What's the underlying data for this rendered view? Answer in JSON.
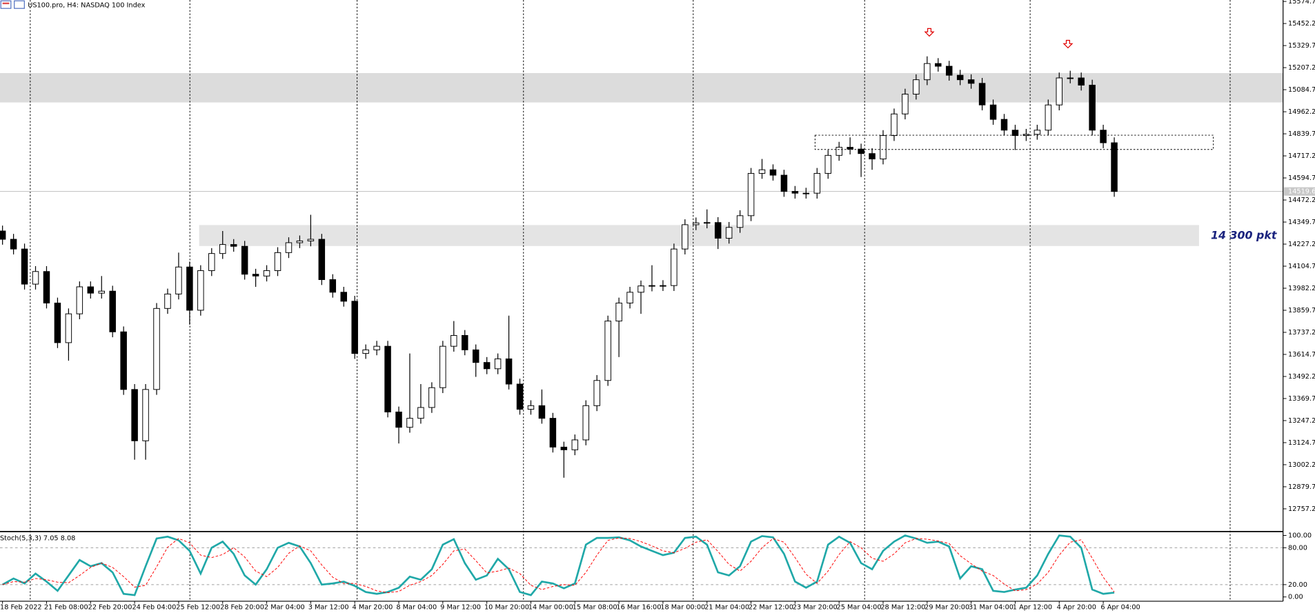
{
  "chart_data": [
    {
      "type": "candlestick",
      "title": "US100.pro, H4:  NASDAQ 100 Index",
      "annotation": "14 300 pkt",
      "categories": [
        "18 Feb 2022",
        null,
        null,
        null,
        "21 Feb 08:00",
        null,
        null,
        null,
        "22 Feb 20:00",
        null,
        null,
        null,
        "24 Feb 04:00",
        null,
        null,
        null,
        "25 Feb 12:00",
        null,
        null,
        null,
        "28 Feb 20:00",
        null,
        null,
        null,
        "2 Mar 04:00",
        null,
        null,
        null,
        "3 Mar 12:00",
        null,
        null,
        null,
        "4 Mar 20:00",
        null,
        null,
        null,
        "8 Mar 04:00",
        null,
        null,
        null,
        "9 Mar 12:00",
        null,
        null,
        null,
        "10 Mar 20:00",
        null,
        null,
        null,
        "14 Mar 00:00",
        null,
        null,
        null,
        "15 Mar 08:00",
        null,
        null,
        null,
        "16 Mar 16:00",
        null,
        null,
        null,
        "18 Mar 00:00",
        null,
        null,
        null,
        "21 Mar 04:00",
        null,
        null,
        null,
        "22 Mar 12:00",
        null,
        null,
        null,
        "23 Mar 20:00",
        null,
        null,
        null,
        "25 Mar 04:00",
        null,
        null,
        null,
        "28 Mar 12:00",
        null,
        null,
        null,
        "29 Mar 20:00",
        null,
        null,
        null,
        "31 Mar 04:00",
        null,
        null,
        null,
        "1 Apr 12:00",
        null,
        null,
        null,
        "4 Apr 20:00",
        null,
        null,
        null,
        "6 Apr 04:00",
        null
      ],
      "open": [
        14300,
        14254,
        14200,
        14005,
        14075,
        13900,
        13680,
        13840,
        13990,
        13955,
        13966,
        13740,
        13420,
        13135,
        13420,
        13870,
        13950,
        14100,
        13860,
        14080,
        14175,
        14225,
        14215,
        14060,
        14050,
        14080,
        14180,
        14235,
        14245,
        14254,
        14030,
        13960,
        13910,
        13620,
        13640,
        13660,
        13295,
        13210,
        13260,
        13320,
        13430,
        13660,
        13720,
        13640,
        13570,
        13535,
        13590,
        13450,
        13310,
        13330,
        13260,
        13100,
        13085,
        13140,
        13330,
        13470,
        13800,
        13900,
        13960,
        13995,
        13997,
        13997,
        14200,
        14335,
        14345,
        14347,
        14260,
        14320,
        14385,
        14620,
        14640,
        14610,
        14520,
        14510,
        14510,
        14620,
        14720,
        14765,
        14755,
        14730,
        14700,
        14830,
        14950,
        15060,
        15140,
        15230,
        15215,
        15165,
        15140,
        15120,
        15000,
        14920,
        14860,
        14830,
        14837,
        14860,
        15000,
        15150,
        15150,
        15110,
        14860,
        14790
      ],
      "high": [
        14330,
        14284,
        14230,
        14105,
        14105,
        13930,
        13870,
        14020,
        14020,
        14050,
        13996,
        13770,
        13450,
        13450,
        13900,
        13980,
        14180,
        14130,
        14110,
        14205,
        14300,
        14255,
        14245,
        14090,
        14110,
        14210,
        14265,
        14275,
        14390,
        14284,
        14060,
        13990,
        13940,
        13670,
        13690,
        13690,
        13325,
        13620,
        13450,
        13460,
        13690,
        13800,
        13750,
        13670,
        13600,
        13620,
        13830,
        13480,
        13360,
        13420,
        13290,
        13130,
        13170,
        13360,
        13500,
        13830,
        13930,
        13990,
        14025,
        14110,
        14027,
        14230,
        14365,
        14375,
        14420,
        14377,
        14350,
        14415,
        14650,
        14700,
        14670,
        14640,
        14550,
        14540,
        14650,
        14750,
        14795,
        14820,
        14785,
        14760,
        14860,
        14980,
        15090,
        15170,
        15270,
        15260,
        15245,
        15195,
        15170,
        15150,
        15030,
        14950,
        14890,
        14867,
        14890,
        15030,
        15180,
        15190,
        15180,
        15140,
        14890,
        14820
      ],
      "low": [
        14224,
        14170,
        13975,
        13975,
        13870,
        13650,
        13580,
        13810,
        13925,
        13925,
        13710,
        13390,
        13030,
        13030,
        13390,
        13840,
        13920,
        13780,
        13830,
        14050,
        14145,
        14185,
        14030,
        13990,
        14020,
        14050,
        14150,
        14205,
        14215,
        14000,
        13930,
        13880,
        13590,
        13590,
        13610,
        13265,
        13120,
        13180,
        13230,
        13290,
        13400,
        13630,
        13610,
        13490,
        13505,
        13505,
        13420,
        13280,
        13280,
        13230,
        13070,
        12930,
        13055,
        13110,
        13300,
        13440,
        13600,
        13870,
        13840,
        13965,
        13967,
        13967,
        14170,
        14305,
        14315,
        14200,
        14230,
        14290,
        14355,
        14590,
        14580,
        14490,
        14480,
        14480,
        14480,
        14590,
        14690,
        14725,
        14600,
        14640,
        14670,
        14800,
        14920,
        15030,
        15110,
        15185,
        15135,
        15110,
        15090,
        14970,
        14890,
        14830,
        14750,
        14800,
        14807,
        14830,
        14970,
        15120,
        15080,
        14830,
        14760,
        14490
      ],
      "close": [
        14254,
        14200,
        14005,
        14075,
        13900,
        13680,
        13840,
        13990,
        13955,
        13966,
        13740,
        13420,
        13135,
        13420,
        13870,
        13950,
        14100,
        13860,
        14080,
        14175,
        14225,
        14215,
        14060,
        14050,
        14080,
        14180,
        14235,
        14245,
        14254,
        14030,
        13960,
        13910,
        13620,
        13640,
        13660,
        13295,
        13210,
        13260,
        13320,
        13430,
        13660,
        13720,
        13640,
        13570,
        13535,
        13590,
        13450,
        13310,
        13330,
        13260,
        13100,
        13085,
        13140,
        13330,
        13470,
        13800,
        13900,
        13960,
        13995,
        13997,
        13997,
        14200,
        14335,
        14345,
        14347,
        14260,
        14320,
        14385,
        14620,
        14640,
        14610,
        14520,
        14510,
        14510,
        14620,
        14720,
        14765,
        14755,
        14730,
        14700,
        14830,
        14950,
        15060,
        15140,
        15230,
        15215,
        15165,
        15140,
        15120,
        15000,
        14920,
        14860,
        14830,
        14837,
        14860,
        15000,
        15150,
        15150,
        15110,
        14860,
        14790,
        14519.6
      ],
      "up_color": "#ffffff",
      "down_color": "#000000",
      "last_price": 14519.6,
      "ylim": [
        12635.7,
        15582.8
      ],
      "yticks": [
        15574.7,
        15452.2,
        15329.7,
        15207.2,
        15084.7,
        14962.2,
        14839.7,
        14717.2,
        14594.7,
        14472.2,
        14349.7,
        14227.2,
        14104.7,
        13982.2,
        13859.7,
        13737.2,
        13614.7,
        13492.2,
        13369.7,
        13247.2,
        13124.7,
        13002.2,
        12879.7,
        12757.2
      ]
    },
    {
      "type": "line",
      "title": "Stoch(5,3,3) 7.05 8.08",
      "series": [
        {
          "color": "#20a8a8",
          "style": "solid",
          "values": [
            20,
            30,
            22,
            38,
            25,
            10,
            35,
            60,
            50,
            55,
            40,
            5,
            3,
            50,
            95,
            98,
            92,
            75,
            38,
            80,
            90,
            70,
            35,
            20,
            45,
            80,
            88,
            82,
            55,
            20,
            22,
            25,
            18,
            8,
            5,
            8,
            15,
            33,
            28,
            45,
            85,
            94,
            55,
            28,
            35,
            62,
            45,
            8,
            3,
            25,
            22,
            14,
            22,
            85,
            96,
            96,
            97,
            92,
            82,
            75,
            68,
            72,
            96,
            98,
            85,
            40,
            35,
            50,
            90,
            99,
            97,
            70,
            25,
            15,
            25,
            85,
            98,
            88,
            55,
            45,
            75,
            90,
            100,
            95,
            88,
            90,
            82,
            30,
            50,
            45,
            10,
            8,
            12,
            15,
            35,
            70,
            100,
            98,
            80,
            12,
            5,
            7.05
          ]
        },
        {
          "color": "#ff0000",
          "style": "dashed",
          "values": [
            20,
            25,
            24,
            30,
            28,
            24,
            23,
            35,
            48,
            55,
            48,
            33,
            16,
            19,
            49,
            81,
            95,
            88,
            68,
            64,
            69,
            80,
            65,
            42,
            33,
            48,
            71,
            83,
            75,
            52,
            32,
            22,
            22,
            17,
            10,
            7,
            9,
            19,
            25,
            35,
            53,
            75,
            78,
            59,
            39,
            42,
            47,
            38,
            19,
            12,
            17,
            20,
            19,
            40,
            68,
            92,
            96,
            95,
            90,
            83,
            75,
            72,
            79,
            89,
            93,
            74,
            53,
            42,
            58,
            80,
            95,
            89,
            64,
            37,
            22,
            42,
            69,
            90,
            80,
            63,
            58,
            70,
            88,
            95,
            94,
            91,
            87,
            67,
            54,
            42,
            35,
            21,
            10,
            12,
            21,
            40,
            68,
            89,
            93,
            63,
            32,
            8.08
          ]
        }
      ],
      "levels": [
        80,
        20
      ],
      "ylim": [
        -7,
        105
      ],
      "yticks": [
        {
          "value": 100,
          "label": "100.00"
        },
        {
          "value": 80,
          "label": "80.00"
        },
        {
          "value": 20,
          "label": "20.00"
        },
        {
          "value": 0,
          "label": "0.00"
        }
      ]
    }
  ]
}
